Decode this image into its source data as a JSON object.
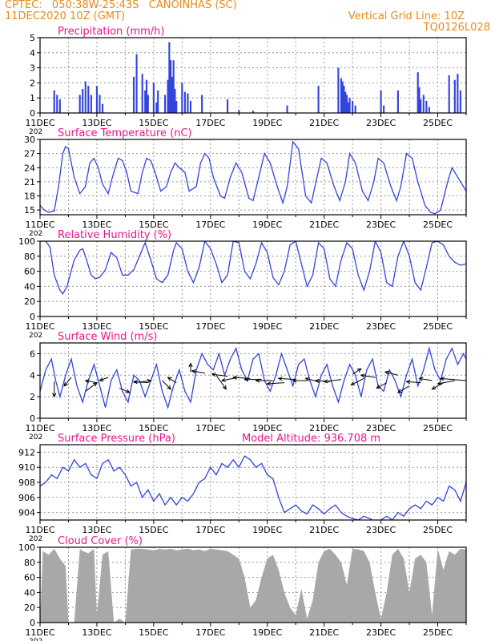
{
  "header": {
    "line1": "CPTEC:   050:38W-25:43S   CANOINHAS (SC)",
    "line2": "11DEC2020 10Z (GMT)",
    "right1": "Vertical Grid Line: 10Z",
    "right2": "TQ0126L028"
  },
  "colors": {
    "header_text": "#e88a18",
    "panel_title": "#e8158c",
    "series_line": "#3344dd",
    "cloud_fill": "#a8a8a8",
    "grid": "#999999",
    "wind_arrows": "#000000"
  },
  "x_axis": {
    "tick_labels": [
      "11DEC",
      "13DEC",
      "15DEC",
      "17DEC",
      "19DEC",
      "21DEC",
      "23DEC",
      "25DEC"
    ],
    "year_fragment": "202",
    "day_range": [
      0,
      15
    ],
    "vertical_grid": "daily at 10Z, dotted"
  },
  "chart_data": [
    {
      "id": "precip",
      "type": "bar",
      "title": "Precipitation (mm/h)",
      "ylim": [
        0,
        5
      ],
      "yticks": [
        0,
        1,
        2,
        3,
        4,
        5
      ],
      "grid": true,
      "x": [
        0.5,
        0.6,
        0.7,
        1.4,
        1.5,
        1.6,
        1.7,
        1.8,
        2.0,
        2.1,
        2.2,
        3.3,
        3.4,
        3.6,
        3.7,
        3.75,
        3.8,
        4.0,
        4.1,
        4.15,
        4.4,
        4.5,
        4.55,
        4.6,
        4.65,
        4.7,
        4.75,
        4.8,
        5.0,
        5.1,
        5.2,
        5.3,
        5.7,
        6.6,
        7.0,
        7.5,
        8.7,
        9.8,
        10.5,
        10.6,
        10.65,
        10.7,
        10.75,
        10.8,
        10.85,
        10.9,
        11.0,
        11.1,
        12.0,
        12.1,
        12.6,
        13.3,
        13.35,
        13.4,
        13.5,
        13.6,
        13.7,
        14.4,
        14.6,
        14.7,
        14.8
      ],
      "values": [
        1.5,
        1.2,
        0.9,
        1.2,
        1.6,
        2.1,
        1.8,
        1.2,
        1.8,
        1.2,
        0.6,
        2.4,
        3.9,
        2.6,
        1.5,
        2.2,
        1.2,
        2.0,
        0.7,
        1.5,
        1.2,
        2.2,
        4.7,
        3.5,
        2.4,
        3.5,
        1.6,
        0.8,
        2.0,
        1.4,
        1.3,
        0.8,
        1.2,
        0.9,
        0.2,
        0.15,
        0.5,
        1.8,
        3.0,
        2.3,
        2.1,
        1.8,
        1.4,
        1.2,
        0.7,
        1.0,
        0.8,
        0.5,
        1.5,
        0.5,
        1.5,
        2.7,
        1.7,
        0.9,
        1.2,
        0.8,
        0.4,
        2.5,
        2.2,
        2.6,
        1.5
      ]
    },
    {
      "id": "temp",
      "type": "line",
      "title": "Surface Temperature (nC)",
      "ylim": [
        14,
        30
      ],
      "yticks": [
        15,
        18,
        21,
        24,
        27,
        30
      ],
      "grid": true,
      "x": [
        0,
        0.15,
        0.3,
        0.5,
        0.65,
        0.8,
        0.9,
        1.0,
        1.2,
        1.4,
        1.6,
        1.75,
        1.9,
        2.05,
        2.2,
        2.4,
        2.55,
        2.75,
        2.9,
        3.05,
        3.2,
        3.45,
        3.6,
        3.75,
        3.9,
        4.05,
        4.25,
        4.45,
        4.6,
        4.75,
        4.9,
        5.1,
        5.25,
        5.5,
        5.65,
        5.8,
        5.95,
        6.1,
        6.35,
        6.5,
        6.7,
        6.9,
        7.1,
        7.35,
        7.5,
        7.7,
        7.9,
        8.1,
        8.35,
        8.55,
        8.7,
        8.9,
        9.1,
        9.35,
        9.55,
        9.75,
        9.9,
        10.1,
        10.35,
        10.55,
        10.75,
        10.9,
        11.1,
        11.35,
        11.55,
        11.75,
        11.9,
        12.1,
        12.35,
        12.55,
        12.7,
        12.9,
        13.1,
        13.3,
        13.55,
        13.75,
        13.9,
        14.1,
        14.35,
        14.5,
        14.7,
        14.85,
        15.0
      ],
      "values": [
        16,
        15,
        14.5,
        14.8,
        20,
        27,
        28.5,
        28,
        22,
        18.5,
        20,
        25,
        26,
        24,
        20.5,
        18.5,
        22,
        26,
        25.5,
        23,
        19,
        18.5,
        23,
        26,
        25.5,
        23,
        19,
        20,
        23,
        25,
        24,
        23,
        19,
        20,
        25,
        27,
        26,
        22,
        18,
        17.5,
        22,
        25,
        23,
        17.5,
        17,
        22,
        27,
        25,
        20,
        16.5,
        20,
        29.5,
        28,
        18,
        16.5,
        22,
        26,
        25,
        20,
        17,
        21,
        27,
        25,
        19,
        17,
        21,
        26,
        25,
        20,
        17,
        20,
        27,
        26,
        21,
        16,
        14.5,
        14.2,
        15,
        21,
        24,
        22,
        20.5,
        19
      ]
    },
    {
      "id": "rh",
      "type": "line",
      "title": "Relative Humidity (%)",
      "ylim": [
        0,
        100
      ],
      "yticks": [
        0,
        20,
        40,
        60,
        80,
        100
      ],
      "grid": true,
      "x": [
        0,
        0.2,
        0.35,
        0.5,
        0.7,
        0.8,
        0.95,
        1.2,
        1.4,
        1.5,
        1.6,
        1.8,
        1.95,
        2.1,
        2.3,
        2.5,
        2.7,
        2.9,
        3.1,
        3.3,
        3.5,
        3.7,
        3.9,
        4.1,
        4.3,
        4.5,
        4.7,
        4.8,
        5.0,
        5.2,
        5.4,
        5.6,
        5.8,
        6.0,
        6.2,
        6.4,
        6.6,
        6.8,
        7.0,
        7.2,
        7.4,
        7.6,
        7.8,
        8.0,
        8.2,
        8.4,
        8.6,
        8.8,
        9.0,
        9.2,
        9.4,
        9.6,
        9.8,
        10.0,
        10.2,
        10.4,
        10.6,
        10.8,
        11.0,
        11.2,
        11.4,
        11.6,
        11.8,
        12.0,
        12.2,
        12.4,
        12.6,
        12.8,
        13.0,
        13.2,
        13.4,
        13.6,
        13.8,
        14.0,
        14.2,
        14.4,
        14.6,
        14.8,
        15.0
      ],
      "values": [
        100,
        100,
        92,
        55,
        35,
        30,
        40,
        75,
        88,
        90,
        80,
        55,
        50,
        52,
        62,
        85,
        78,
        55,
        55,
        62,
        80,
        98,
        75,
        50,
        45,
        55,
        88,
        98,
        90,
        60,
        45,
        65,
        100,
        90,
        70,
        45,
        55,
        100,
        98,
        60,
        50,
        70,
        98,
        85,
        52,
        42,
        60,
        95,
        100,
        70,
        40,
        55,
        98,
        90,
        50,
        40,
        75,
        98,
        90,
        55,
        35,
        60,
        100,
        85,
        45,
        40,
        80,
        100,
        80,
        45,
        35,
        65,
        98,
        100,
        95,
        80,
        72,
        68,
        70
      ]
    },
    {
      "id": "wind",
      "type": "line",
      "title": "Surface Wind (m/s)",
      "ylim": [
        0,
        7
      ],
      "yticks": [
        0,
        2,
        4,
        6
      ],
      "grid": true,
      "x": [
        0,
        0.2,
        0.4,
        0.55,
        0.7,
        0.9,
        1.1,
        1.3,
        1.5,
        1.7,
        1.9,
        2.1,
        2.3,
        2.5,
        2.7,
        2.9,
        3.1,
        3.3,
        3.5,
        3.7,
        3.9,
        4.1,
        4.3,
        4.5,
        4.7,
        4.9,
        5.1,
        5.3,
        5.5,
        5.7,
        5.9,
        6.1,
        6.3,
        6.5,
        6.7,
        6.9,
        7.1,
        7.3,
        7.5,
        7.7,
        7.9,
        8.1,
        8.3,
        8.5,
        8.7,
        8.9,
        9.1,
        9.3,
        9.5,
        9.7,
        9.9,
        10.1,
        10.3,
        10.5,
        10.7,
        10.9,
        11.1,
        11.3,
        11.5,
        11.7,
        11.9,
        12.1,
        12.3,
        12.5,
        12.7,
        12.9,
        13.1,
        13.3,
        13.5,
        13.7,
        13.9,
        14.1,
        14.3,
        14.5,
        14.7,
        14.9,
        15.0
      ],
      "values": [
        2.5,
        4.5,
        5.5,
        3.5,
        2.0,
        4.0,
        5.5,
        3.0,
        1.5,
        3.5,
        5.0,
        3.0,
        1.0,
        3.5,
        4.5,
        2.5,
        1.5,
        4.0,
        3.5,
        2.0,
        3.5,
        5.0,
        2.5,
        1.0,
        3.0,
        4.5,
        2.5,
        1.5,
        4.5,
        6.0,
        5.0,
        4.5,
        6.0,
        4.0,
        5.5,
        6.5,
        4.5,
        3.5,
        5.5,
        6.0,
        3.5,
        2.5,
        4.0,
        6.0,
        4.5,
        3.0,
        5.0,
        5.5,
        3.5,
        2.0,
        4.0,
        5.0,
        3.0,
        1.5,
        3.5,
        5.0,
        4.0,
        2.0,
        4.5,
        5.5,
        3.0,
        2.5,
        4.5,
        3.5,
        2.0,
        4.0,
        5.5,
        3.0,
        4.5,
        6.5,
        4.5,
        3.5,
        5.5,
        6.5,
        5.0,
        6.0,
        5.5
      ],
      "arrows": {
        "x": [
          0.5,
          1.1,
          1.6,
          2.0,
          2.4,
          2.8,
          3.3,
          3.8,
          4.3,
          4.8,
          5.3,
          5.8,
          6.2,
          6.6,
          7.0,
          7.4,
          7.8,
          8.2,
          8.6,
          9.0,
          9.4,
          9.8,
          10.2,
          10.6,
          11.0,
          11.4,
          11.8,
          12.2,
          12.6,
          13.0,
          13.4,
          13.8,
          14.2,
          14.6,
          15.0
        ],
        "y": [
          3.4,
          3.8,
          2.5,
          3.3,
          3.8,
          2.8,
          3.3,
          3.3,
          3.5,
          3.3,
          4.3,
          4.2,
          4.0,
          3.9,
          3.8,
          3.7,
          3.6,
          3.5,
          3.3,
          3.6,
          3.5,
          3.4,
          3.4,
          3.6,
          4.1,
          3.7,
          3.8,
          3.3,
          4.0,
          3.0,
          3.3,
          3.5,
          3.3,
          3.5,
          3.5
        ],
        "dx": [
          0.0,
          -0.25,
          0.4,
          -0.4,
          -0.3,
          0.35,
          0.6,
          -0.5,
          0.3,
          -0.3,
          0.0,
          -0.45,
          0.35,
          -0.55,
          -0.6,
          -0.6,
          -0.6,
          -0.6,
          -0.6,
          -0.6,
          -0.5,
          -0.45,
          -0.5,
          -0.6,
          0.3,
          -0.45,
          -0.5,
          -0.35,
          -0.45,
          -0.4,
          -0.5,
          -0.45,
          -0.4,
          -0.6,
          -0.9
        ],
        "dy": [
          -1.4,
          -0.8,
          0.8,
          0.2,
          -0.3,
          -0.4,
          0.2,
          0.1,
          -0.8,
          0.5,
          0.8,
          0.2,
          -1.3,
          0.2,
          -0.3,
          0.1,
          0.0,
          0.0,
          -0.1,
          0.1,
          0.0,
          0.3,
          0.1,
          -0.2,
          0.5,
          -0.6,
          0.2,
          -0.5,
          0.3,
          -0.6,
          0.1,
          0.2,
          -0.6,
          -0.3,
          0.2
        ]
      }
    },
    {
      "id": "press",
      "type": "line",
      "title": "Surface Pressure (hPa)",
      "subtitle": "Model Altitude: 936.708  m",
      "ylim": [
        903,
        913
      ],
      "yticks": [
        904,
        906,
        908,
        910,
        912
      ],
      "grid": true,
      "x": [
        0,
        0.2,
        0.4,
        0.6,
        0.8,
        1.0,
        1.2,
        1.4,
        1.6,
        1.8,
        2.0,
        2.2,
        2.4,
        2.6,
        2.8,
        3.0,
        3.2,
        3.4,
        3.6,
        3.8,
        4.0,
        4.2,
        4.4,
        4.6,
        4.8,
        5.0,
        5.2,
        5.4,
        5.6,
        5.8,
        6.0,
        6.2,
        6.4,
        6.6,
        6.8,
        7.0,
        7.2,
        7.4,
        7.6,
        7.8,
        8.0,
        8.2,
        8.4,
        8.6,
        8.8,
        9.0,
        9.2,
        9.4,
        9.6,
        9.8,
        10.0,
        10.2,
        10.4,
        10.6,
        10.8,
        11.0,
        11.2,
        11.4,
        11.6,
        11.8,
        12.0,
        12.2,
        12.4,
        12.6,
        12.8,
        13.0,
        13.2,
        13.4,
        13.6,
        13.8,
        14.0,
        14.2,
        14.4,
        14.6,
        14.8,
        15.0
      ],
      "values": [
        907.5,
        908.0,
        909.0,
        908.5,
        910.0,
        909.5,
        911.0,
        910.0,
        910.5,
        909.0,
        908.5,
        910.5,
        911.0,
        909.5,
        910.0,
        909.0,
        907.5,
        908.0,
        906.0,
        907.0,
        905.5,
        906.5,
        905.0,
        906.0,
        905.0,
        906.0,
        905.5,
        906.5,
        908.0,
        908.5,
        910.0,
        909.0,
        910.5,
        910.0,
        911.0,
        910.0,
        911.5,
        911.0,
        910.0,
        910.5,
        909.0,
        908.5,
        906.0,
        904.0,
        904.5,
        905.0,
        904.2,
        903.8,
        905.0,
        904.5,
        903.8,
        904.5,
        905.0,
        904.0,
        903.5,
        903.2,
        903.0,
        903.5,
        903.2,
        902.8,
        903.0,
        903.5,
        903.0,
        904.0,
        903.5,
        904.5,
        905.0,
        904.5,
        905.5,
        905.0,
        906.0,
        905.5,
        907.5,
        907.0,
        905.5,
        908.0
      ]
    },
    {
      "id": "cloud",
      "type": "area",
      "title": "Cloud Cover (%)",
      "ylim": [
        0,
        100
      ],
      "yticks": [
        0,
        20,
        40,
        60,
        80,
        100
      ],
      "grid": true,
      "x": [
        0,
        0.1,
        0.3,
        0.5,
        0.7,
        0.9,
        1.0,
        1.2,
        1.4,
        1.5,
        1.7,
        1.9,
        2.0,
        2.2,
        2.4,
        2.6,
        2.8,
        3.0,
        3.2,
        3.4,
        3.6,
        3.8,
        4.0,
        4.2,
        4.4,
        4.6,
        4.8,
        5.0,
        5.2,
        5.4,
        5.6,
        5.8,
        6.0,
        6.2,
        6.4,
        6.6,
        6.8,
        7.0,
        7.2,
        7.4,
        7.6,
        7.8,
        8.0,
        8.2,
        8.4,
        8.6,
        8.8,
        9.0,
        9.2,
        9.4,
        9.6,
        9.8,
        10.0,
        10.2,
        10.4,
        10.6,
        10.8,
        11.0,
        11.2,
        11.4,
        11.6,
        11.8,
        12.0,
        12.2,
        12.4,
        12.6,
        12.8,
        13.0,
        13.2,
        13.4,
        13.6,
        13.8,
        14.0,
        14.2,
        14.4,
        14.6,
        14.8,
        15.0
      ],
      "values": [
        0,
        95,
        90,
        98,
        85,
        75,
        0,
        0,
        98,
        95,
        92,
        98,
        10,
        90,
        95,
        0,
        5,
        0,
        97,
        98,
        98,
        97,
        96,
        98,
        97,
        98,
        96,
        97,
        98,
        96,
        97,
        95,
        98,
        97,
        96,
        95,
        90,
        85,
        60,
        20,
        30,
        60,
        85,
        90,
        70,
        40,
        20,
        10,
        45,
        5,
        30,
        80,
        95,
        98,
        90,
        80,
        50,
        98,
        97,
        95,
        80,
        40,
        5,
        40,
        90,
        98,
        85,
        40,
        85,
        90,
        80,
        10,
        98,
        70,
        95,
        90,
        98,
        97
      ]
    }
  ]
}
